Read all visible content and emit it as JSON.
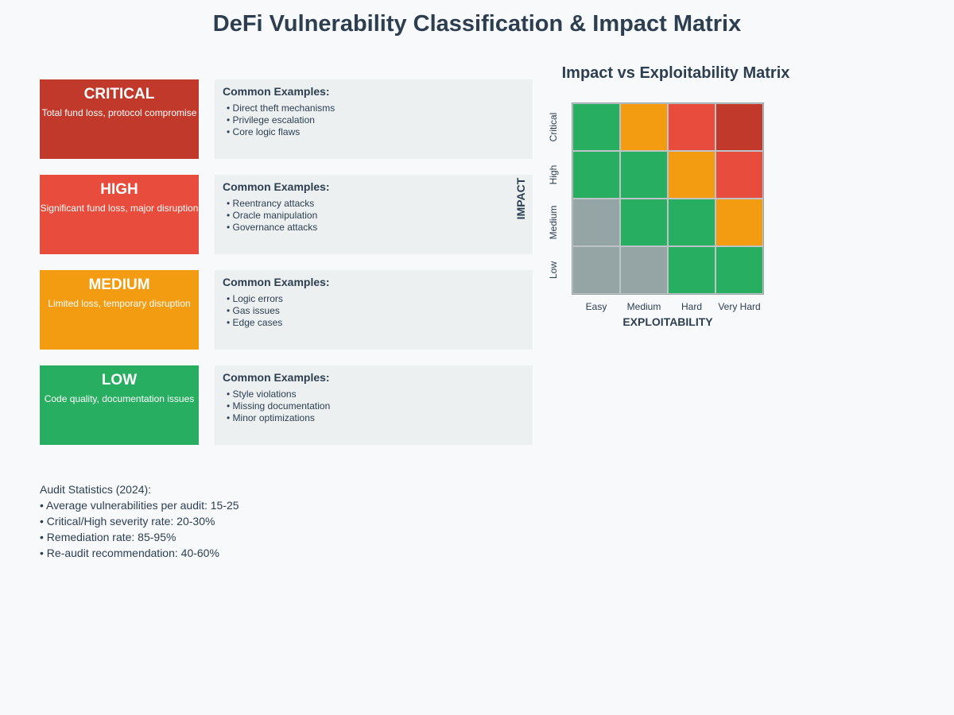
{
  "title": "DeFi Vulnerability Classification & Impact Matrix",
  "severities": [
    {
      "name": "CRITICAL",
      "description": "Total fund loss, protocol compromise",
      "color": "#c0392b",
      "examples_heading": "Common Examples:",
      "examples": [
        "• Direct theft mechanisms",
        "• Privilege escalation",
        "• Core logic flaws"
      ]
    },
    {
      "name": "HIGH",
      "description": "Significant fund loss, major disruption",
      "color": "#e74c3c",
      "examples_heading": "Common Examples:",
      "examples": [
        "• Reentrancy attacks",
        "• Oracle manipulation",
        "• Governance attacks"
      ]
    },
    {
      "name": "MEDIUM",
      "description": "Limited loss, temporary disruption",
      "color": "#f39c12",
      "examples_heading": "Common Examples:",
      "examples": [
        "• Logic errors",
        "• Gas issues",
        "• Edge cases"
      ]
    },
    {
      "name": "LOW",
      "description": "Code quality, documentation issues",
      "color": "#27ae60",
      "examples_heading": "Common Examples:",
      "examples": [
        "• Style violations",
        "• Missing documentation",
        "• Minor optimizations"
      ]
    }
  ],
  "matrix": {
    "title": "Impact vs Exploitability Matrix",
    "y_axis_title": "IMPACT",
    "x_axis_title": "EXPLOITABILITY",
    "impact_levels": [
      "Critical",
      "High",
      "Medium",
      "Low"
    ],
    "exploitability_levels": [
      "Easy",
      "Medium",
      "Hard",
      "Very Hard"
    ],
    "colors": {
      "green": "#27ae60",
      "orange": "#f39c12",
      "red": "#e74c3c",
      "darkred": "#c0392b",
      "gray": "#95a5a6"
    },
    "grid": [
      [
        "green",
        "orange",
        "red",
        "darkred"
      ],
      [
        "green",
        "green",
        "orange",
        "red"
      ],
      [
        "gray",
        "green",
        "green",
        "orange"
      ],
      [
        "gray",
        "gray",
        "green",
        "green"
      ]
    ]
  },
  "stats": {
    "heading": "Audit Statistics (2024):",
    "items": [
      "• Average vulnerabilities per audit: 15-25",
      "• Critical/High severity rate: 20-30%",
      "• Remediation rate: 85-95%",
      "• Re-audit recommendation: 40-60%"
    ]
  }
}
